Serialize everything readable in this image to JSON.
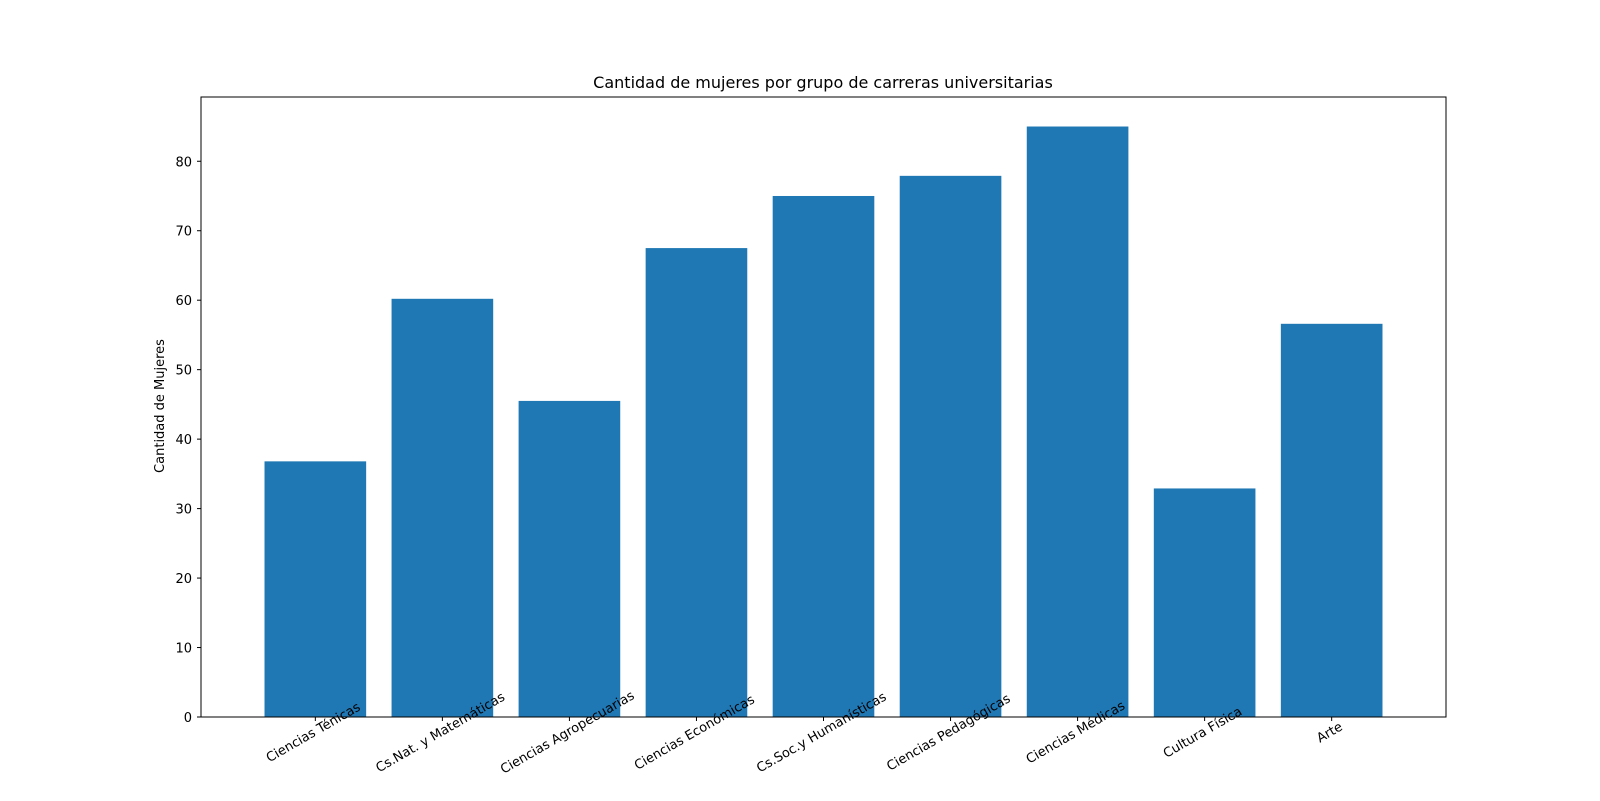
{
  "chart_data": {
    "type": "bar",
    "title": "Cantidad de mujeres por grupo de carreras universitarias",
    "xlabel": "",
    "ylabel": "Cantidad de Mujeres",
    "categories": [
      "Ciencias Ténicas",
      "Cs.Nat. y Matemáticas",
      "Ciencias Agropecuarias",
      "Ciencias Económicas",
      "Cs.Soc.y Humanísticas",
      "Ciencias Pedagógicas",
      "Ciencias Médicas",
      "Cultura Física",
      "Arte"
    ],
    "values": [
      36.8,
      60.2,
      45.5,
      67.5,
      75.0,
      77.9,
      85.0,
      32.9,
      56.6
    ],
    "ylim": [
      0,
      89.25
    ],
    "yticks": [
      0,
      10,
      20,
      30,
      40,
      50,
      60,
      70,
      80
    ],
    "bar_color": "#1f77b4",
    "grid": false,
    "legend": "none"
  }
}
